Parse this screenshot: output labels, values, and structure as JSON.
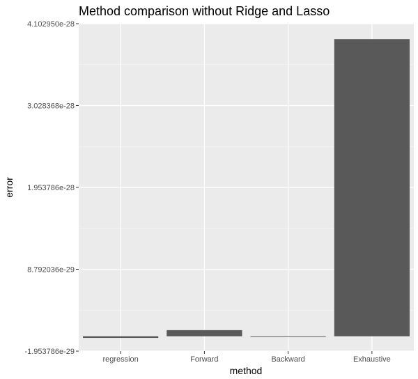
{
  "chart_data": {
    "type": "bar",
    "title": "Method comparison without Ridge and Lasso",
    "xlabel": "method",
    "ylabel": "error",
    "categories": [
      "regression",
      "Forward",
      "Backward",
      "Exhaustive"
    ],
    "series": [
      {
        "values": [
          -2.2e-30,
          8e-30,
          -6e-31,
          3.9e-28
        ]
      }
    ],
    "y_ticks": [
      -1.953786e-29,
      8.792036e-29,
      1.953786e-28,
      3.028368e-28,
      4.10295e-28
    ],
    "y_tick_labels": [
      "-1.953786e-29",
      "8.792036e-29",
      "1.953786e-28",
      "3.028368e-28",
      "4.102950e-28"
    ],
    "ylim": [
      -1.953786e-29,
      4.10295e-28
    ],
    "grid": true,
    "colors": {
      "bar": "#595959",
      "panel": "#ebebeb",
      "grid_major": "#ffffff",
      "grid_minor": "#f5f5f5"
    }
  }
}
